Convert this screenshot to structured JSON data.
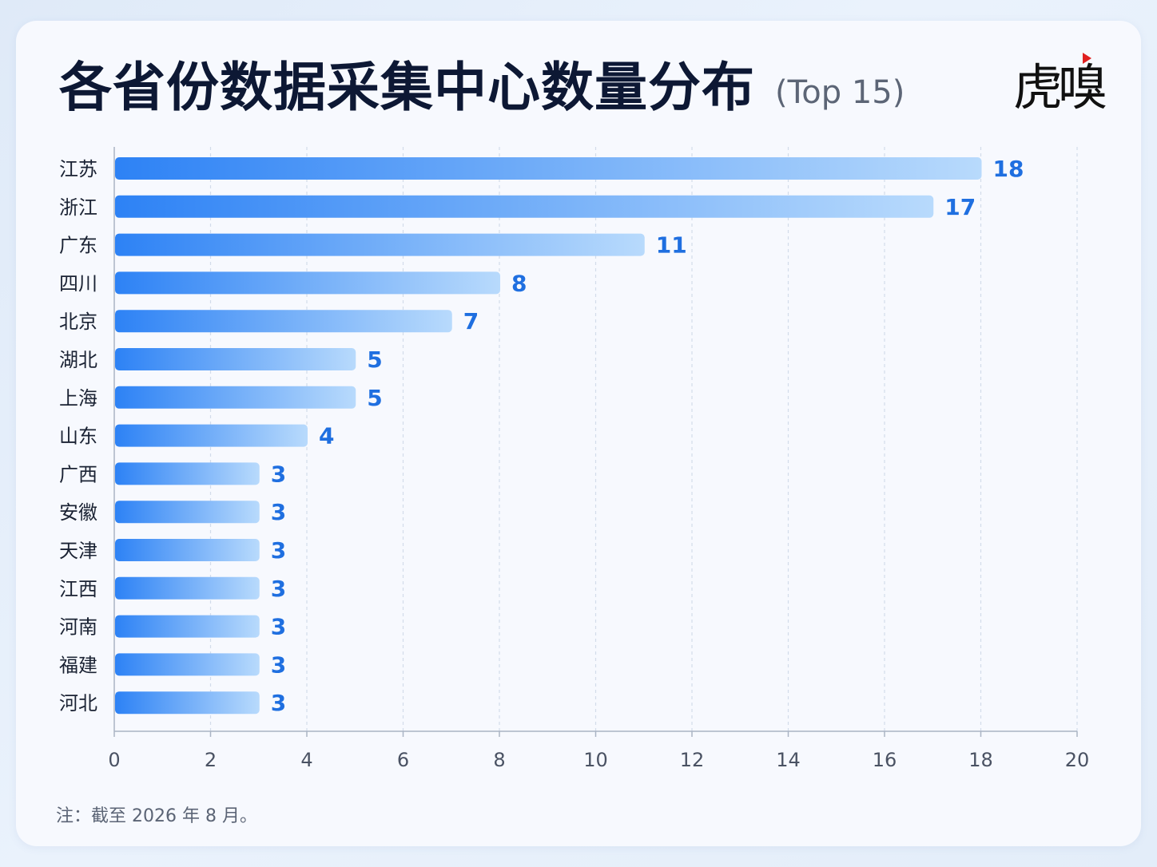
{
  "chart_data": {
    "type": "bar",
    "orientation": "horizontal",
    "title": "各省份数据采集中心数量分布",
    "subtitle": "(Top 15)",
    "categories": [
      "江苏",
      "浙江",
      "广东",
      "四川",
      "北京",
      "湖北",
      "上海",
      "山东",
      "广西",
      "安徽",
      "天津",
      "江西",
      "河南",
      "福建",
      "河北"
    ],
    "values": [
      18,
      17,
      11,
      8,
      7,
      5,
      5,
      4,
      3,
      3,
      3,
      3,
      3,
      3,
      3
    ],
    "xlim": [
      0,
      20
    ],
    "xticks": [
      0,
      2,
      4,
      6,
      8,
      10,
      12,
      14,
      16,
      18,
      20
    ],
    "grid": "vertical dashed",
    "data_labels": true
  },
  "brand": {
    "logo_text": "虎嗅",
    "logo_icon": "red-triangle-mark"
  },
  "note": "注：截至 2026 年 8 月。",
  "colors": {
    "bar_start": "#2d82f5",
    "bar_end": "#b8dafc",
    "value_label": "#1f6fe0",
    "title": "#0d1834",
    "logo_mark": "#e02020"
  }
}
